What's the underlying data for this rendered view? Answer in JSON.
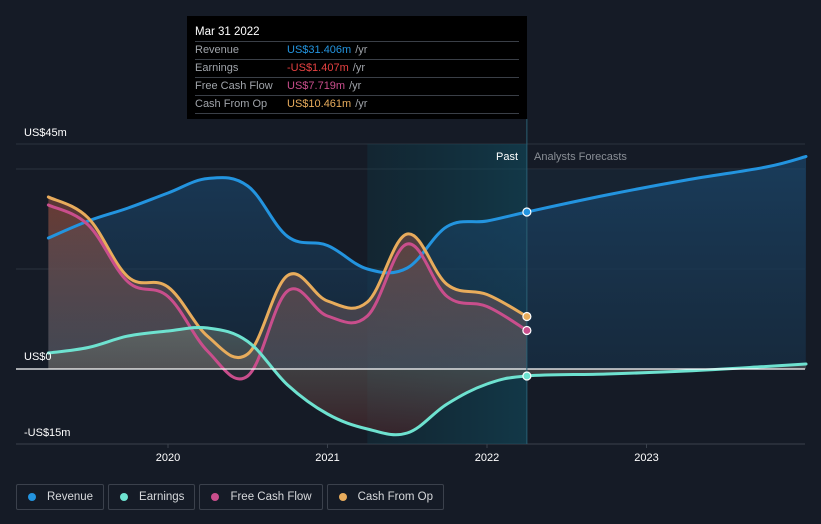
{
  "tooltip": {
    "date": "Mar 31 2022",
    "rows": [
      {
        "name": "Revenue",
        "value": "US$31.406m",
        "unit": "/yr",
        "color": "#2394df"
      },
      {
        "name": "Earnings",
        "value": "-US$1.407m",
        "unit": "/yr",
        "color": "#e64141"
      },
      {
        "name": "Free Cash Flow",
        "value": "US$7.719m",
        "unit": "/yr",
        "color": "#c94e8c"
      },
      {
        "name": "Cash From Op",
        "value": "US$10.461m",
        "unit": "/yr",
        "color": "#e8ac5c"
      }
    ]
  },
  "legend": [
    {
      "label": "Revenue",
      "color": "#2394df"
    },
    {
      "label": "Earnings",
      "color": "#6ee2d0"
    },
    {
      "label": "Free Cash Flow",
      "color": "#c94e8c"
    },
    {
      "label": "Cash From Op",
      "color": "#e8ac5c"
    }
  ],
  "chart_data": {
    "type": "line",
    "title": "",
    "xlabel": "",
    "ylabel": "",
    "y_tick_labels": [
      "US$45m",
      "US$0",
      "-US$15m"
    ],
    "x_tick_labels": [
      "2020",
      "2021",
      "2022",
      "2023"
    ],
    "x_ticks": [
      2020,
      2021,
      2022,
      2023
    ],
    "ylim": [
      -15,
      45
    ],
    "xlim": [
      2019.0,
      2024.0
    ],
    "gridlines_y": [
      45,
      40,
      20,
      0
    ],
    "grid": true,
    "legend_position": "bottom-left",
    "past_label": "Past",
    "forecast_label": "Analysts Forecasts",
    "past_shade_start": 2021.25,
    "current_date": 2022.25,
    "series": [
      {
        "name": "Revenue",
        "color": "#2394df",
        "x": [
          2019.25,
          2019.5,
          2019.75,
          2020.0,
          2020.25,
          2020.5,
          2020.75,
          2021.0,
          2021.25,
          2021.5,
          2021.75,
          2022.0,
          2022.25,
          2022.75,
          2023.25,
          2023.75,
          2024.0
        ],
        "y": [
          26.2,
          29.6,
          32.2,
          35.2,
          38.1,
          36.6,
          26.5,
          24.7,
          20.0,
          20.2,
          28.5,
          29.6,
          31.4,
          34.8,
          37.8,
          40.4,
          42.5
        ]
      },
      {
        "name": "Earnings",
        "color": "#6ee2d0",
        "x": [
          2019.25,
          2019.5,
          2019.75,
          2020.0,
          2020.25,
          2020.5,
          2020.75,
          2021.0,
          2021.25,
          2021.5,
          2021.75,
          2022.0,
          2022.25,
          2022.75,
          2023.25,
          2023.75,
          2024.0
        ],
        "y": [
          3.2,
          4.3,
          6.6,
          7.6,
          8.2,
          5.5,
          -3.2,
          -9.0,
          -12.0,
          -12.8,
          -7.0,
          -3.0,
          -1.4,
          -1.0,
          -0.4,
          0.5,
          1.0
        ]
      },
      {
        "name": "Free Cash Flow",
        "color": "#c94e8c",
        "x": [
          2019.25,
          2019.5,
          2019.75,
          2020.0,
          2020.25,
          2020.5,
          2020.75,
          2021.0,
          2021.25,
          2021.5,
          2021.75,
          2022.0,
          2022.25
        ],
        "y": [
          32.8,
          28.8,
          17.4,
          14.5,
          3.5,
          -1.4,
          15.6,
          10.6,
          10.6,
          25.0,
          14.5,
          12.5,
          7.7
        ]
      },
      {
        "name": "Cash From Op",
        "color": "#e8ac5c",
        "x": [
          2019.25,
          2019.5,
          2019.75,
          2020.0,
          2020.25,
          2020.5,
          2020.75,
          2021.0,
          2021.25,
          2021.5,
          2021.75,
          2022.0,
          2022.25
        ],
        "y": [
          34.4,
          30.2,
          18.4,
          16.4,
          6.5,
          3.0,
          18.7,
          13.6,
          13.4,
          27.0,
          16.9,
          14.9,
          10.5
        ]
      }
    ]
  }
}
